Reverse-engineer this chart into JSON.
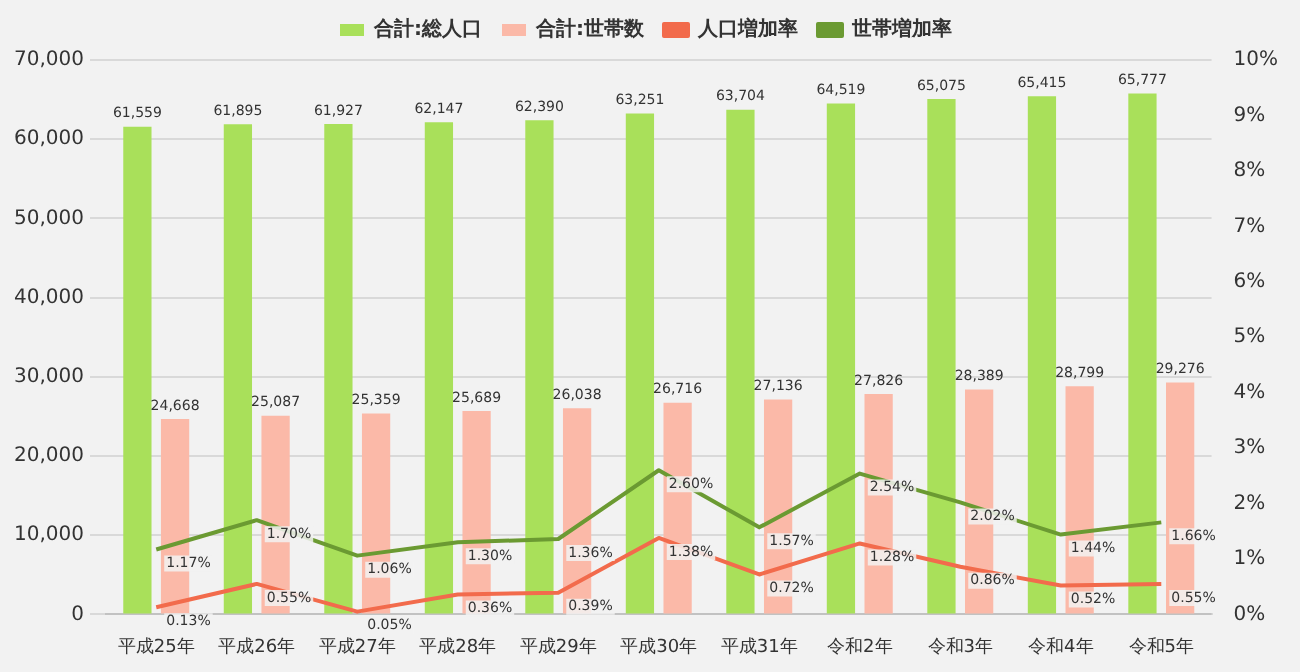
{
  "chart_data": {
    "type": "bar",
    "categories": [
      "平成25年",
      "平成26年",
      "平成27年",
      "平成28年",
      "平成29年",
      "平成30年",
      "平成31年",
      "令和2年",
      "令和3年",
      "令和4年",
      "令和5年"
    ],
    "series": [
      {
        "name": "合計:総人口",
        "color": "#a9e05a",
        "values": [
          61559,
          61895,
          61927,
          62147,
          62390,
          63251,
          63704,
          64519,
          65075,
          65415,
          65777
        ],
        "value_labels": [
          "61,559",
          "61,895",
          "61,927",
          "62,147",
          "62,390",
          "63,251",
          "63,704",
          "64,519",
          "65,075",
          "65,415",
          "65,777"
        ]
      },
      {
        "name": "合計:世帯数",
        "color": "#fbb9a8",
        "values": [
          24668,
          25087,
          25359,
          25689,
          26038,
          26716,
          27136,
          27826,
          28389,
          28799,
          29276
        ],
        "value_labels": [
          "24,668",
          "25,087",
          "25,359",
          "25,689",
          "26,038",
          "26,716",
          "27,136",
          "27,826",
          "28,389",
          "28,799",
          "29,276"
        ]
      },
      {
        "name": "人口増加率",
        "type": "line",
        "axis": "y2",
        "color": "#f26b4c",
        "values": [
          0.13,
          0.55,
          0.05,
          0.36,
          0.39,
          1.38,
          0.72,
          1.28,
          0.86,
          0.52,
          0.55
        ],
        "value_labels": [
          "0.13%",
          "0.55%",
          "0.05%",
          "0.36%",
          "0.39%",
          "1.38%",
          "0.72%",
          "1.28%",
          "0.86%",
          "0.52%",
          "0.55%"
        ]
      },
      {
        "name": "世帯増加率",
        "type": "line",
        "axis": "y2",
        "color": "#6b9a32",
        "values": [
          1.17,
          1.7,
          1.06,
          1.3,
          1.36,
          2.6,
          1.57,
          2.54,
          2.02,
          1.44,
          1.66
        ],
        "value_labels": [
          "1.17%",
          "1.70%",
          "1.06%",
          "1.30%",
          "1.36%",
          "2.60%",
          "1.57%",
          "2.54%",
          "2.02%",
          "1.44%",
          "1.66%"
        ]
      }
    ],
    "ylim": [
      0,
      70000
    ],
    "yticks": [
      0,
      {
        "value": 10000,
        "label": "10,000"
      },
      {
        "value": 20000,
        "label": "20,000"
      },
      {
        "value": 30000,
        "label": "30,000"
      },
      {
        "value": 40000,
        "label": "40,000"
      },
      {
        "value": 50000,
        "label": "50,000"
      },
      {
        "value": 60000,
        "label": "60,000"
      },
      {
        "value": 70000,
        "label": "70,000"
      }
    ],
    "y2lim": [
      0,
      10
    ],
    "y2ticks": [
      {
        "value": 0,
        "label": "0%"
      },
      {
        "value": 1,
        "label": "1%"
      },
      {
        "value": 2,
        "label": "2%"
      },
      {
        "value": 3,
        "label": "3%"
      },
      {
        "value": 4,
        "label": "4%"
      },
      {
        "value": 5,
        "label": "5%"
      },
      {
        "value": 6,
        "label": "6%"
      },
      {
        "value": 7,
        "label": "7%"
      },
      {
        "value": 8,
        "label": "8%"
      },
      {
        "value": 9,
        "label": "9%"
      },
      {
        "value": 10,
        "label": "10%"
      }
    ],
    "grid": "y",
    "legend": "top",
    "marker": "none",
    "line_style": "solid"
  }
}
